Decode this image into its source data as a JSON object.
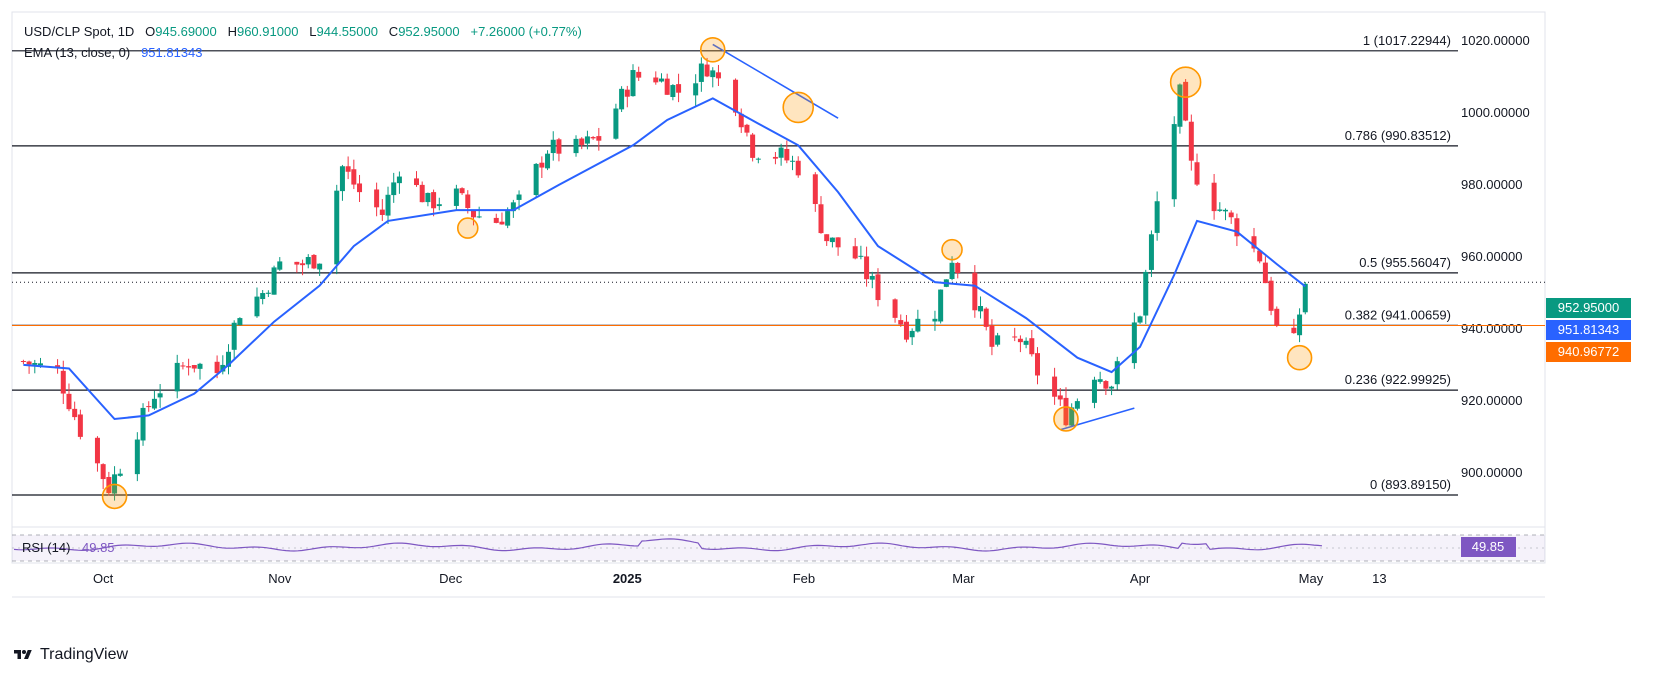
{
  "header": {
    "symbol": "USD/CLP Spot, 1D",
    "open_label": "O",
    "open": "945.69000",
    "high_label": "H",
    "high": "960.91000",
    "low_label": "L",
    "low": "944.55000",
    "close_label": "C",
    "close": "952.95000",
    "change": "+7.26000 (+0.77%)",
    "ema_label": "EMA (13, close, 0)",
    "ema_value": "951.81343"
  },
  "rsi": {
    "label": "RSI (14)",
    "value": "49.85"
  },
  "price_tags": {
    "close": "952.95000",
    "ema": "951.81343",
    "hline": "940.96772"
  },
  "colors": {
    "up": "#089981",
    "down": "#f23645",
    "ema": "#2962ff",
    "hline_tag": "#ff6d00",
    "circle": "#ff9800",
    "rsi_line": "#7e57c2"
  },
  "brand": {
    "name": "TradingView"
  },
  "chart_data": {
    "type": "candlestick",
    "y_axis": {
      "ylim": [
        885,
        1028
      ],
      "ticks": [
        "900.00000",
        "920.00000",
        "940.00000",
        "960.00000",
        "980.00000",
        "1000.00000",
        "1020.00000"
      ]
    },
    "x_axis": {
      "tick_labels": [
        "Oct",
        "Nov",
        "Dec",
        "2025",
        "Feb",
        "Mar",
        "Apr",
        "May",
        "13"
      ]
    },
    "fib_levels": [
      {
        "label": "1 (1017.22944)",
        "value": 1017.22944
      },
      {
        "label": "0.786 (990.83512)",
        "value": 990.83512
      },
      {
        "label": "0.5 (955.56047)",
        "value": 955.56047
      },
      {
        "label": "0.382 (941.00659)",
        "value": 941.00659
      },
      {
        "label": "0.236 (922.99925)",
        "value": 922.99925
      },
      {
        "label": "0 (893.89150)",
        "value": 893.8915
      }
    ],
    "last_close": 952.95,
    "series": [
      {
        "name": "USD/CLP",
        "type": "candles",
        "waypoints": [
          [
            "2024-09-17",
            931
          ],
          [
            "2024-09-23",
            928
          ],
          [
            "2024-09-27",
            912
          ],
          [
            "2024-10-02",
            896
          ],
          [
            "2024-10-04",
            902
          ],
          [
            "2024-10-10",
            922
          ],
          [
            "2024-10-16",
            931
          ],
          [
            "2024-10-21",
            928
          ],
          [
            "2024-10-25",
            945
          ],
          [
            "2024-10-29",
            950
          ],
          [
            "2024-11-01",
            958
          ],
          [
            "2024-11-05",
            958
          ],
          [
            "2024-11-08",
            960
          ],
          [
            "2024-11-12",
            985
          ],
          [
            "2024-11-15",
            978
          ],
          [
            "2024-11-19",
            972
          ],
          [
            "2024-11-22",
            985
          ],
          [
            "2024-11-27",
            975
          ],
          [
            "2024-12-02",
            977
          ],
          [
            "2024-12-05",
            972
          ],
          [
            "2024-12-09",
            970
          ],
          [
            "2024-12-13",
            975
          ],
          [
            "2024-12-18",
            990
          ],
          [
            "2024-12-23",
            990
          ],
          [
            "2024-12-27",
            993
          ],
          [
            "2025-01-02",
            1010
          ],
          [
            "2025-01-06",
            1010
          ],
          [
            "2025-01-10",
            1006
          ],
          [
            "2025-01-15",
            1013
          ],
          [
            "2025-01-20",
            1003
          ],
          [
            "2025-01-23",
            990
          ],
          [
            "2025-01-28",
            988
          ],
          [
            "2025-01-31",
            985
          ],
          [
            "2025-02-05",
            965
          ],
          [
            "2025-02-10",
            960
          ],
          [
            "2025-02-14",
            950
          ],
          [
            "2025-02-19",
            940
          ],
          [
            "2025-02-24",
            945
          ],
          [
            "2025-02-27",
            960
          ],
          [
            "2025-03-03",
            948
          ],
          [
            "2025-03-06",
            935
          ],
          [
            "2025-03-11",
            937
          ],
          [
            "2025-03-14",
            928
          ],
          [
            "2025-03-19",
            916
          ],
          [
            "2025-03-24",
            928
          ],
          [
            "2025-03-27",
            925
          ],
          [
            "2025-04-01",
            945
          ],
          [
            "2025-04-04",
            975
          ],
          [
            "2025-04-08",
            1005
          ],
          [
            "2025-04-10",
            985
          ],
          [
            "2025-04-14",
            975
          ],
          [
            "2025-04-17",
            970
          ],
          [
            "2025-04-22",
            960
          ],
          [
            "2025-04-25",
            940
          ],
          [
            "2025-04-28",
            936
          ],
          [
            "2025-04-30",
            952.95
          ]
        ]
      },
      {
        "name": "EMA (13, close, 0)",
        "type": "line",
        "waypoints": [
          [
            "2024-09-17",
            930
          ],
          [
            "2024-09-25",
            929
          ],
          [
            "2024-10-03",
            915
          ],
          [
            "2024-10-09",
            916
          ],
          [
            "2024-10-17",
            922
          ],
          [
            "2024-10-23",
            930
          ],
          [
            "2024-10-31",
            942
          ],
          [
            "2024-11-08",
            952
          ],
          [
            "2024-11-14",
            963
          ],
          [
            "2024-11-20",
            970
          ],
          [
            "2024-12-02",
            973
          ],
          [
            "2024-12-12",
            973
          ],
          [
            "2024-12-20",
            980
          ],
          [
            "2025-01-02",
            991
          ],
          [
            "2025-01-08",
            998
          ],
          [
            "2025-01-16",
            1004
          ],
          [
            "2025-01-24",
            997
          ],
          [
            "2025-01-31",
            991
          ],
          [
            "2025-02-07",
            978
          ],
          [
            "2025-02-14",
            963
          ],
          [
            "2025-02-24",
            953
          ],
          [
            "2025-03-03",
            952
          ],
          [
            "2025-03-12",
            943
          ],
          [
            "2025-03-21",
            932
          ],
          [
            "2025-03-27",
            928
          ],
          [
            "2025-04-01",
            935
          ],
          [
            "2025-04-07",
            955
          ],
          [
            "2025-04-11",
            970
          ],
          [
            "2025-04-18",
            967
          ],
          [
            "2025-04-25",
            958
          ],
          [
            "2025-04-30",
            951.8
          ]
        ]
      },
      {
        "name": "RSI (14)",
        "type": "line",
        "value": 49.85
      }
    ],
    "annotations": {
      "circles": [
        [
          "2024-10-03",
          893.5
        ],
        [
          "2024-12-04",
          968
        ],
        [
          "2025-01-16",
          1017.5
        ],
        [
          "2025-01-31",
          1001.5
        ],
        [
          "2025-02-27",
          962
        ],
        [
          "2025-03-19",
          915
        ],
        [
          "2025-04-09",
          1008.5
        ],
        [
          "2025-04-29",
          932
        ]
      ],
      "trendlines": [
        [
          [
            "2025-01-16",
            1019
          ],
          [
            "2025-02-07",
            998.5
          ]
        ],
        [
          [
            "2025-03-18",
            912
          ],
          [
            "2025-03-31",
            918
          ]
        ]
      ]
    }
  }
}
